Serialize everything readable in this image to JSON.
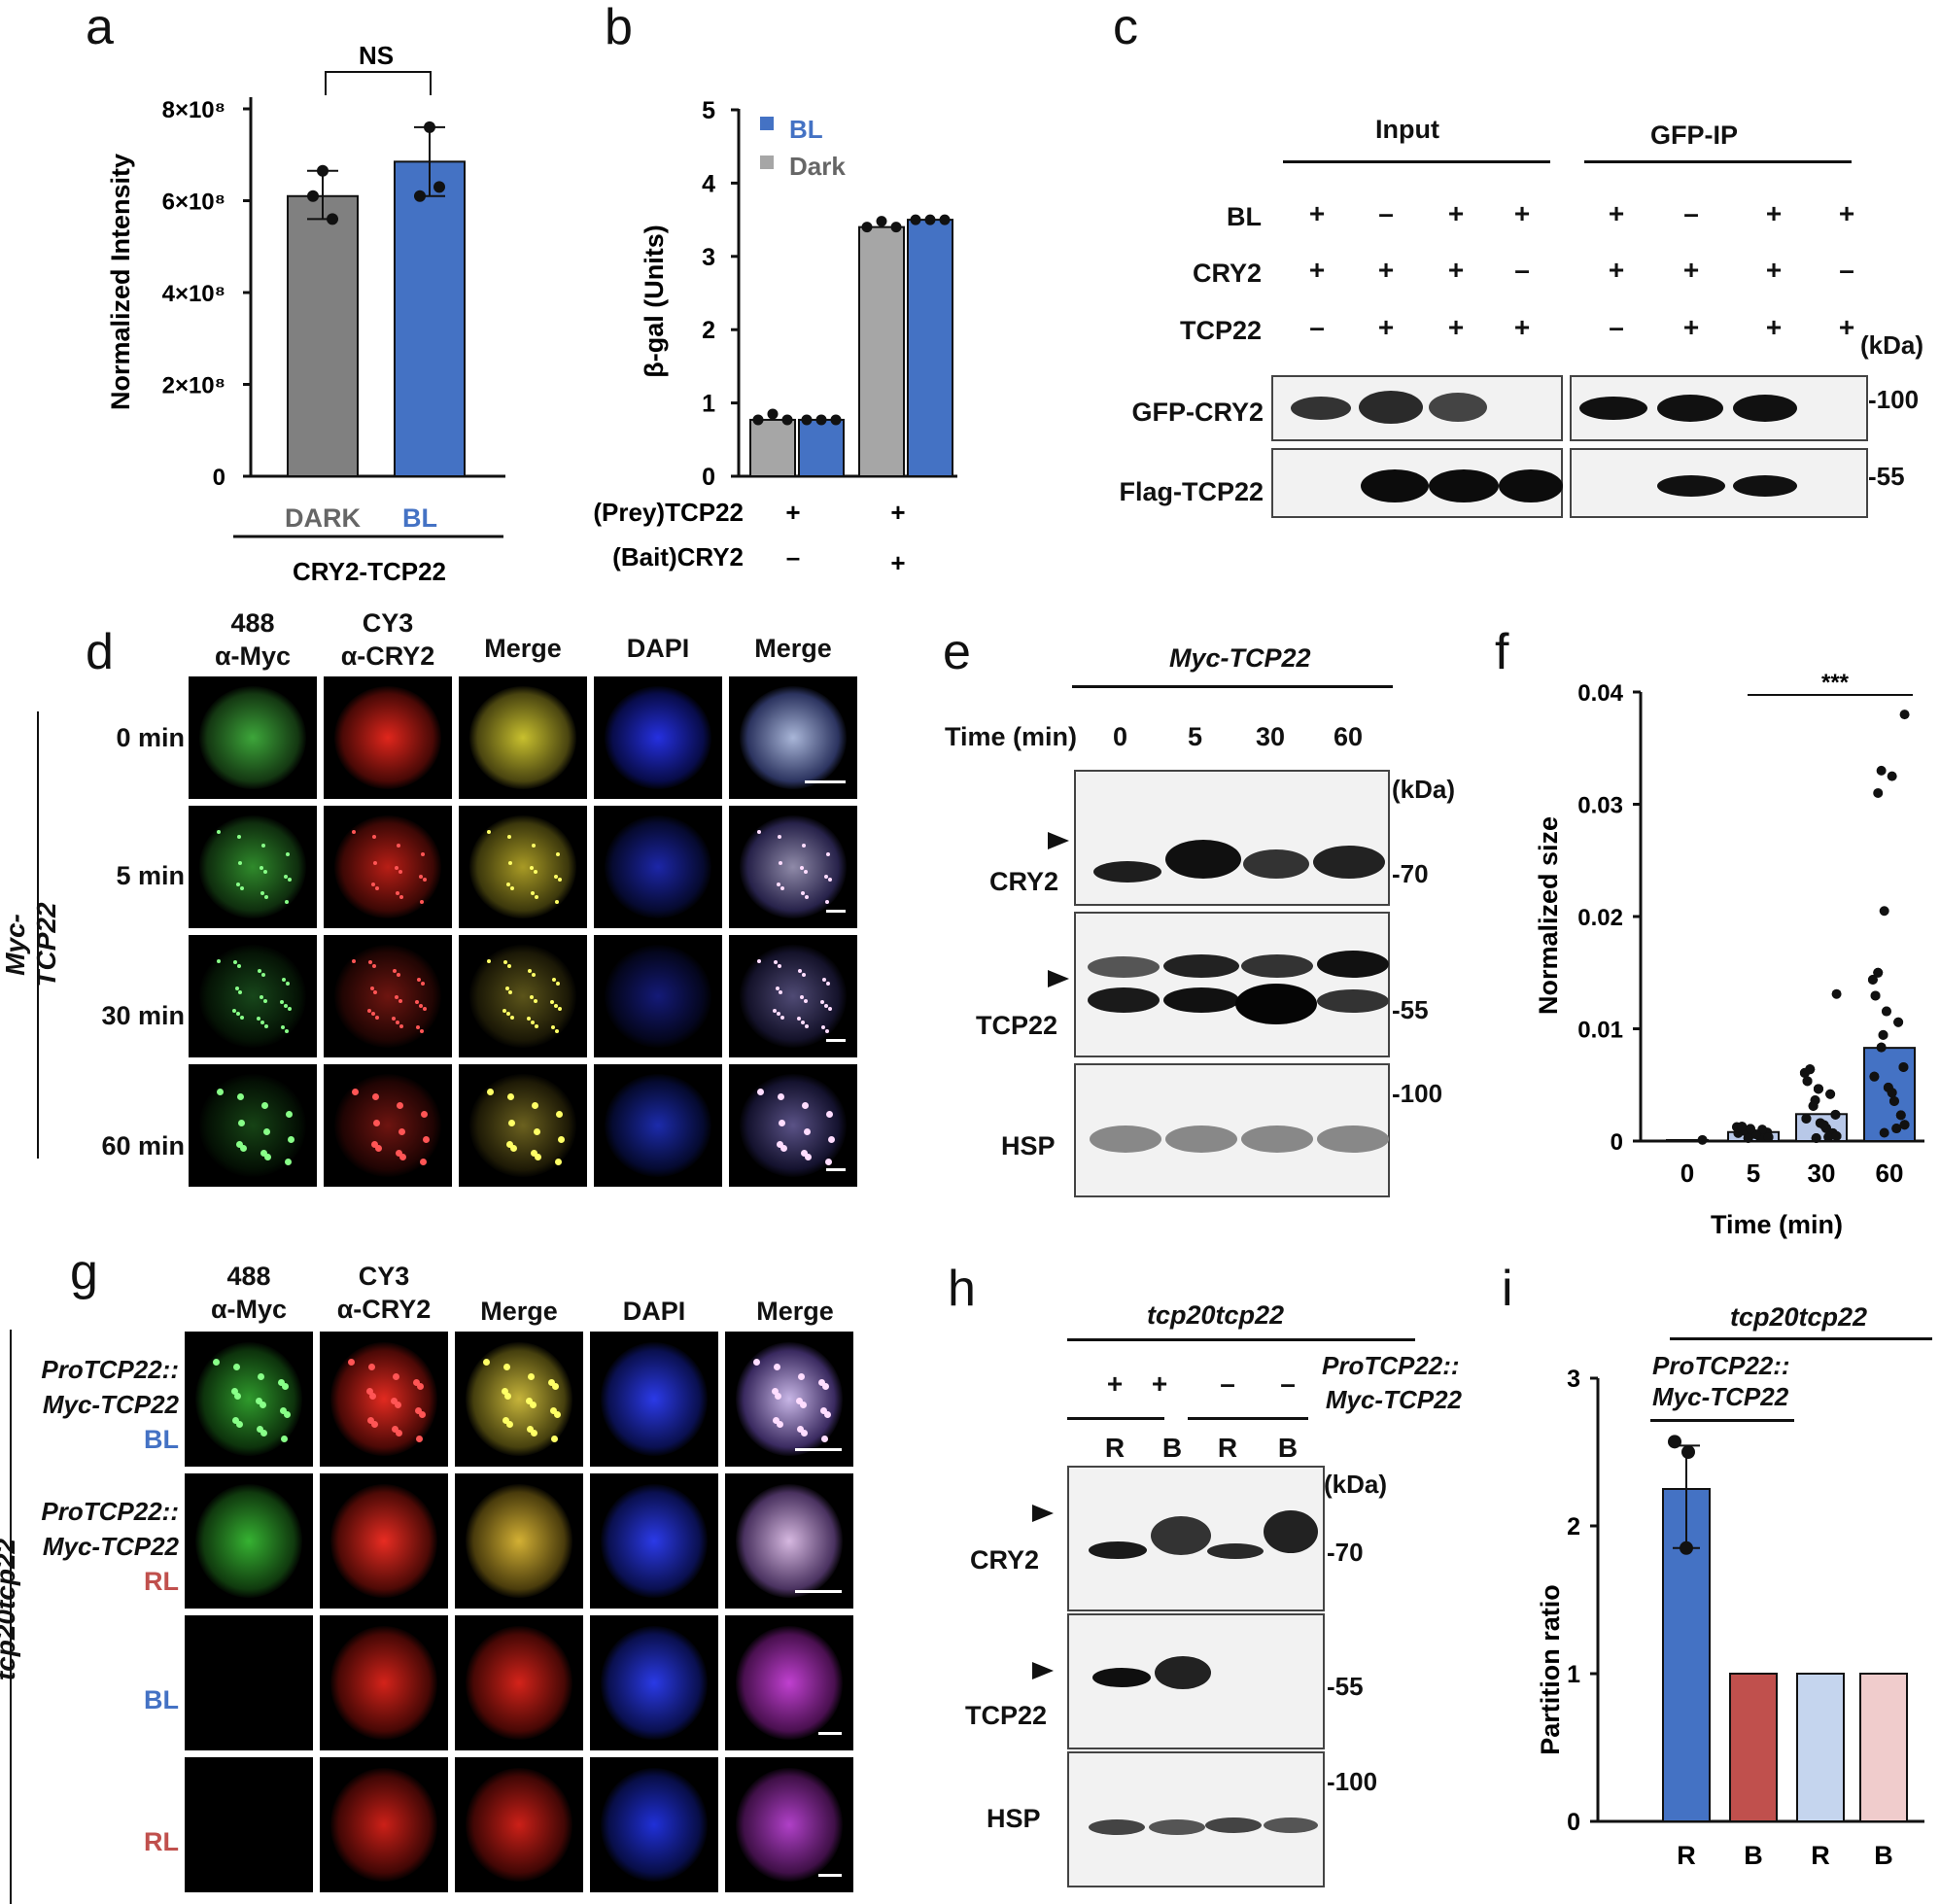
{
  "panels": {
    "a": {
      "label": "a",
      "yaxis": "Normalized Intensity",
      "ticks": [
        "0",
        "2×10⁸",
        "4×10⁸",
        "6×10⁸",
        "8×10⁸"
      ],
      "bars": [
        {
          "name": "DARK",
          "value": 6.1,
          "color": "#808080"
        },
        {
          "name": "BL",
          "value": 6.85,
          "color": "#4472c4"
        }
      ],
      "points": [
        [
          6.65,
          6.1,
          5.6
        ],
        [
          7.6,
          6.1,
          6.3
        ]
      ],
      "group": "CRY2-TCP22",
      "sig": "NS"
    },
    "b": {
      "label": "b",
      "yaxis": "β-gal (Units)",
      "ticks": [
        "0",
        "1",
        "2",
        "3",
        "4",
        "5"
      ],
      "legend": [
        {
          "name": "BL",
          "color": "#4472c4"
        },
        {
          "name": "Dark",
          "color": "#a6a6a6"
        }
      ],
      "row_labels": [
        "(Prey)TCP22",
        "(Bait)CRY2"
      ],
      "row_signs": [
        [
          "+",
          "+"
        ],
        [
          "–",
          "+"
        ]
      ],
      "bars": [
        {
          "dark": 0.77,
          "bl": 0.77
        },
        {
          "dark": 3.4,
          "bl": 3.5
        }
      ]
    },
    "c": {
      "label": "c",
      "groups": [
        "Input",
        "GFP-IP"
      ],
      "rows": [
        "BL",
        "CRY2",
        "TCP22"
      ],
      "signs": [
        [
          "+",
          "–",
          "+",
          "+",
          "+",
          "–",
          "+",
          "+"
        ],
        [
          "+",
          "+",
          "+",
          "–",
          "+",
          "+",
          "+",
          "–"
        ],
        [
          "–",
          "+",
          "+",
          "+",
          "–",
          "+",
          "+",
          "+"
        ]
      ],
      "blots": [
        "GFP-CRY2",
        "Flag-TCP22"
      ],
      "kda": "(kDa)",
      "markers": [
        "-100",
        "-55"
      ]
    },
    "d": {
      "label": "d",
      "cols": [
        [
          "488",
          "α-Myc"
        ],
        [
          "CY3",
          "α-CRY2"
        ],
        [
          "Merge",
          ""
        ],
        [
          "DAPI",
          ""
        ],
        [
          "Merge",
          ""
        ]
      ],
      "rows": [
        "0 min",
        "5 min",
        "30 min",
        "60 min"
      ],
      "side": "Myc-TCP22"
    },
    "e": {
      "label": "e",
      "title": "Myc-TCP22",
      "time_label": "Time (min)",
      "times": [
        "0",
        "5",
        "30",
        "60"
      ],
      "blots": [
        "CRY2",
        "TCP22",
        "HSP"
      ],
      "kda": "(kDa)",
      "markers": [
        "-70",
        "-55",
        "-100"
      ]
    },
    "f": {
      "label": "f",
      "yaxis": "Normalized size",
      "xaxis": "Time (min)",
      "ticks": [
        "0",
        "0.01",
        "0.02",
        "0.03",
        "0.04"
      ],
      "categories": [
        "0",
        "5",
        "30",
        "60"
      ],
      "means": [
        0.0002,
        0.0008,
        0.0024,
        0.0083
      ],
      "sig": "***"
    },
    "g": {
      "label": "g",
      "cols": [
        [
          "488",
          "α-Myc"
        ],
        [
          "CY3",
          "α-CRY2"
        ],
        [
          "Merge",
          ""
        ],
        [
          "DAPI",
          ""
        ],
        [
          "Merge",
          ""
        ]
      ],
      "rows": [
        [
          "ProTCP22::",
          "Myc-TCP22",
          "BL"
        ],
        [
          "ProTCP22::",
          "Myc-TCP22",
          "RL"
        ],
        [
          "",
          "",
          "BL"
        ],
        [
          "",
          "",
          "RL"
        ]
      ],
      "side": "tcp20tcp22",
      "bl_color": "#4472c4",
      "rl_color": "#c0504d"
    },
    "h": {
      "label": "h",
      "title": "tcp20tcp22",
      "construct": [
        "ProTCP22::",
        "Myc-TCP22"
      ],
      "signs": [
        "+",
        "+",
        "–",
        "–"
      ],
      "lanes": [
        "R",
        "B",
        "R",
        "B"
      ],
      "blots": [
        "CRY2",
        "TCP22",
        "HSP"
      ],
      "kda": "(kDa)",
      "markers": [
        "-70",
        "-55",
        "-100"
      ]
    },
    "i": {
      "label": "i",
      "title": "tcp20tcp22",
      "construct": [
        "ProTCP22::",
        "Myc-TCP22"
      ],
      "yaxis": "Partition ratio",
      "ticks": [
        "0",
        "1",
        "2",
        "3"
      ],
      "categories": [
        "R",
        "B",
        "R",
        "B"
      ],
      "values": [
        2.25,
        1,
        1,
        1
      ],
      "colors": [
        "#4472c4",
        "#c0504d",
        "#c5d5ee",
        "#f0cccc"
      ],
      "points": [
        2.57,
        2.5,
        1.85
      ]
    }
  }
}
